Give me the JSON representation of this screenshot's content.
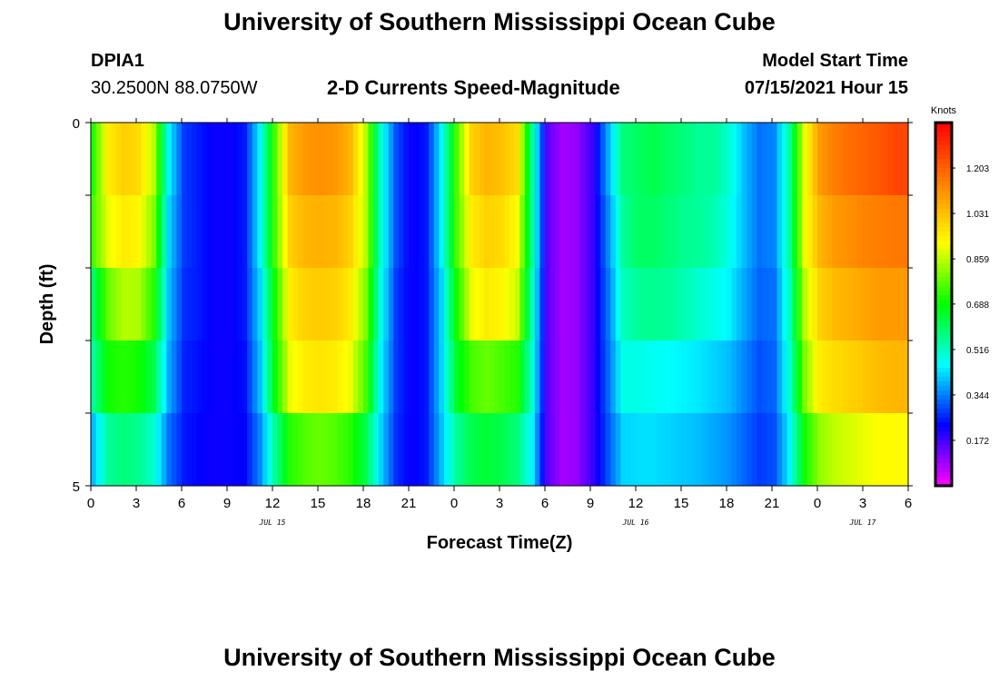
{
  "header": {
    "title": "University of Southern Mississippi Ocean Cube",
    "station_id": "DPIA1",
    "station_coords": "30.2500N  88.0750W",
    "chart_title": "2-D Currents Speed-Magnitude",
    "model_label": "Model Start Time",
    "model_time": "07/15/2021 Hour 15"
  },
  "footer": {
    "title": "University of Southern Mississippi Ocean Cube"
  },
  "colorbar": {
    "unit": "Knots",
    "ticks": [
      "1.203",
      "1.031",
      "0.859",
      "0.688",
      "0.516",
      "0.344",
      "0.172"
    ],
    "range": [
      0.0,
      1.375
    ],
    "colors": [
      "#ff00ff",
      "#8000ff",
      "#0000ff",
      "#0080ff",
      "#00ffff",
      "#00ff80",
      "#00ff00",
      "#80ff00",
      "#ffff00",
      "#ffc000",
      "#ff8000",
      "#ff4000",
      "#ff0000"
    ]
  },
  "chart_data": {
    "type": "heatmap",
    "xlabel": "Forecast Time(Z)",
    "ylabel": "Depth (ft)",
    "ylim": [
      0,
      5
    ],
    "y_tick_labels": [
      "0",
      "5"
    ],
    "x_tick_labels": [
      "0",
      "3",
      "6",
      "9",
      "12",
      "15",
      "18",
      "21",
      "0",
      "3",
      "6",
      "9",
      "12",
      "15",
      "18",
      "21",
      "0",
      "3",
      "6"
    ],
    "date_labels": [
      {
        "text": "JUL 15",
        "hour": 12
      },
      {
        "text": "JUL 16",
        "hour": 36
      },
      {
        "text": "JUL 17",
        "hour": 51
      }
    ],
    "x_range_hours": [
      0,
      54
    ],
    "depth_levels": [
      0.5,
      1.5,
      2.5,
      3.5,
      4.5
    ],
    "hourly_values_knots": {
      "hours": [
        0,
        1,
        2,
        3,
        4,
        5,
        6,
        7,
        8,
        9,
        10,
        11,
        12,
        13,
        14,
        15,
        16,
        17,
        18,
        19,
        20,
        21,
        22,
        23,
        24,
        25,
        26,
        27,
        28,
        29,
        30,
        31,
        32,
        33,
        34,
        35,
        36,
        37,
        38,
        39,
        40,
        41,
        42,
        43,
        44,
        45,
        46,
        47,
        48,
        49,
        50,
        51,
        52,
        53,
        54
      ],
      "depth_0_5": [
        0.72,
        0.95,
        1.0,
        0.98,
        0.85,
        0.45,
        0.28,
        0.25,
        0.22,
        0.22,
        0.25,
        0.45,
        0.75,
        1.05,
        1.1,
        1.12,
        1.1,
        1.05,
        0.85,
        0.5,
        0.3,
        0.22,
        0.25,
        0.45,
        0.75,
        1.0,
        1.05,
        1.03,
        0.98,
        0.55,
        0.15,
        0.08,
        0.1,
        0.18,
        0.38,
        0.58,
        0.6,
        0.62,
        0.6,
        0.58,
        0.55,
        0.55,
        0.5,
        0.4,
        0.33,
        0.35,
        0.55,
        0.9,
        1.1,
        1.15,
        1.18,
        1.2,
        1.22,
        1.25,
        1.25
      ],
      "depth_1_5": [
        0.75,
        0.9,
        0.95,
        0.93,
        0.8,
        0.42,
        0.28,
        0.25,
        0.22,
        0.22,
        0.25,
        0.45,
        0.75,
        1.0,
        1.05,
        1.06,
        1.05,
        1.0,
        0.85,
        0.5,
        0.3,
        0.22,
        0.25,
        0.45,
        0.75,
        0.95,
        1.0,
        0.98,
        0.92,
        0.55,
        0.15,
        0.08,
        0.1,
        0.18,
        0.35,
        0.55,
        0.6,
        0.6,
        0.58,
        0.56,
        0.55,
        0.53,
        0.48,
        0.4,
        0.33,
        0.35,
        0.55,
        0.9,
        1.05,
        1.1,
        1.12,
        1.14,
        1.15,
        1.16,
        1.16
      ],
      "depth_2_5": [
        0.6,
        0.78,
        0.85,
        0.84,
        0.72,
        0.4,
        0.27,
        0.25,
        0.22,
        0.22,
        0.25,
        0.42,
        0.7,
        0.95,
        1.0,
        1.01,
        1.0,
        0.95,
        0.8,
        0.48,
        0.28,
        0.22,
        0.25,
        0.42,
        0.7,
        0.9,
        0.95,
        0.93,
        0.87,
        0.52,
        0.15,
        0.08,
        0.1,
        0.18,
        0.33,
        0.52,
        0.55,
        0.56,
        0.55,
        0.53,
        0.5,
        0.48,
        0.45,
        0.38,
        0.32,
        0.33,
        0.52,
        0.85,
        1.0,
        1.04,
        1.06,
        1.08,
        1.1,
        1.1,
        1.1
      ],
      "depth_3_5": [
        0.55,
        0.7,
        0.72,
        0.7,
        0.62,
        0.38,
        0.26,
        0.24,
        0.22,
        0.22,
        0.24,
        0.4,
        0.68,
        0.9,
        0.95,
        0.96,
        0.95,
        0.9,
        0.75,
        0.45,
        0.28,
        0.22,
        0.25,
        0.42,
        0.65,
        0.75,
        0.78,
        0.75,
        0.72,
        0.5,
        0.15,
        0.08,
        0.1,
        0.18,
        0.32,
        0.48,
        0.48,
        0.47,
        0.46,
        0.45,
        0.44,
        0.42,
        0.4,
        0.35,
        0.3,
        0.32,
        0.5,
        0.8,
        0.95,
        0.98,
        1.0,
        1.02,
        1.04,
        1.05,
        1.05
      ],
      "depth_4_5": [
        0.4,
        0.55,
        0.58,
        0.56,
        0.5,
        0.33,
        0.25,
        0.23,
        0.22,
        0.22,
        0.23,
        0.35,
        0.55,
        0.72,
        0.76,
        0.78,
        0.76,
        0.72,
        0.62,
        0.42,
        0.27,
        0.22,
        0.25,
        0.4,
        0.55,
        0.62,
        0.64,
        0.62,
        0.58,
        0.45,
        0.15,
        0.08,
        0.1,
        0.18,
        0.3,
        0.42,
        0.43,
        0.43,
        0.42,
        0.41,
        0.4,
        0.38,
        0.36,
        0.32,
        0.28,
        0.3,
        0.45,
        0.7,
        0.82,
        0.86,
        0.88,
        0.9,
        0.92,
        0.92,
        0.92
      ]
    }
  }
}
